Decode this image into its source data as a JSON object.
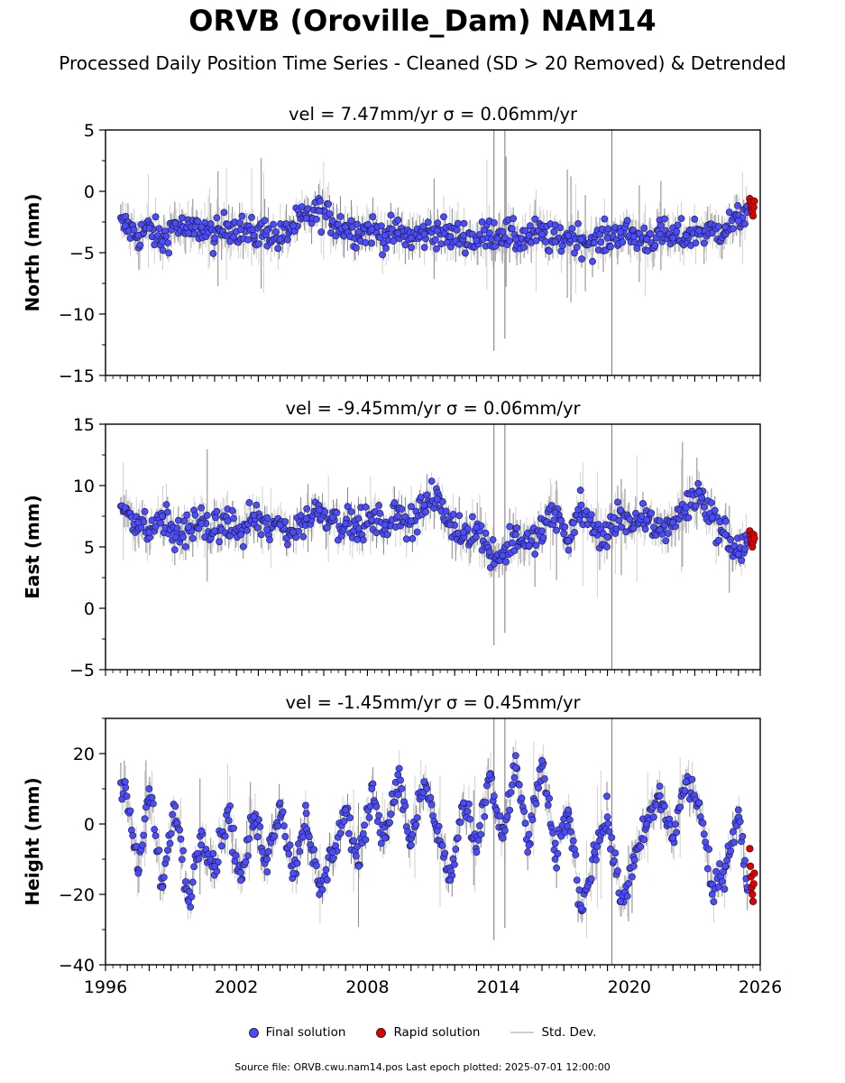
{
  "title": "ORVB (Oroville_Dam) NAM14",
  "subtitle": "Processed Daily Position Time Series - Cleaned (SD > 20 Removed) & Detrended",
  "legend": {
    "final": "Final solution",
    "rapid": "Rapid solution",
    "std": "Std. Dev."
  },
  "footer": "Source file: ORVB.cwu.nam14.pos  Last epoch plotted: 2025-07-01 12:00:00",
  "colors": {
    "final": "#4b4bff",
    "rapid": "#e00000",
    "std": "#b0b0b0"
  },
  "chart_data": [
    {
      "type": "scatter",
      "panel_title": "vel = 7.47mm/yr   σ = 0.06mm/yr",
      "ylabel": "North (mm)",
      "xlim": [
        1996,
        2026
      ],
      "ylim": [
        -15,
        5
      ],
      "yticks": [
        -15,
        -10,
        -5,
        0,
        5
      ],
      "ytick_labels": [
        "−15",
        "−10",
        "−5",
        "0",
        "5"
      ],
      "series": [
        {
          "name": "Final solution",
          "x": [
            1996.9,
            1997.5,
            1998.0,
            1998.6,
            1999.2,
            1999.8,
            2000.4,
            2001.0,
            2001.6,
            2002.2,
            2002.8,
            2003.4,
            2004.0,
            2004.6,
            2005.2,
            2005.8,
            2006.4,
            2007.0,
            2007.6,
            2008.2,
            2008.8,
            2009.4,
            2010.0,
            2010.6,
            2011.2,
            2011.8,
            2012.4,
            2013.0,
            2013.6,
            2014.2,
            2014.8,
            2015.4,
            2016.0,
            2016.6,
            2017.2,
            2017.8,
            2018.4,
            2019.0,
            2019.6,
            2020.2,
            2020.8,
            2021.4,
            2022.0,
            2022.6,
            2023.2,
            2023.8,
            2024.4,
            2025.0,
            2025.4
          ],
          "y": [
            -2.8,
            -3.6,
            -3.0,
            -4.1,
            -2.6,
            -3.4,
            -2.9,
            -3.8,
            -2.7,
            -3.1,
            -3.6,
            -3.2,
            -3.9,
            -2.8,
            -2.2,
            -1.6,
            -2.4,
            -2.9,
            -3.3,
            -3.1,
            -3.6,
            -3.4,
            -3.8,
            -3.5,
            -3.2,
            -3.7,
            -3.6,
            -4.0,
            -3.4,
            -3.3,
            -3.9,
            -3.6,
            -3.5,
            -4.1,
            -3.6,
            -3.9,
            -4.2,
            -3.8,
            -3.3,
            -3.7,
            -3.9,
            -3.5,
            -3.8,
            -3.6,
            -3.2,
            -3.4,
            -2.9,
            -2.4,
            -1.2
          ]
        },
        {
          "name": "Rapid solution",
          "x": [
            2025.52,
            2025.55,
            2025.58,
            2025.61,
            2025.64,
            2025.67,
            2025.7,
            2025.73
          ],
          "y": [
            -0.6,
            -0.9,
            -1.2,
            -1.5,
            -1.7,
            -2.0,
            -1.3,
            -0.8
          ]
        }
      ]
    },
    {
      "type": "scatter",
      "panel_title": "vel = -9.45mm/yr   σ = 0.06mm/yr",
      "ylabel": "East (mm)",
      "xlim": [
        1996,
        2026
      ],
      "ylim": [
        -5,
        15
      ],
      "yticks": [
        -5,
        0,
        5,
        10,
        15
      ],
      "ytick_labels": [
        "−5",
        "0",
        "5",
        "10",
        "15"
      ],
      "series": [
        {
          "name": "Final solution",
          "x": [
            1996.9,
            1997.5,
            1998.0,
            1998.6,
            1999.2,
            1999.8,
            2000.4,
            2001.0,
            2001.6,
            2002.2,
            2002.8,
            2003.4,
            2004.0,
            2004.6,
            2005.2,
            2005.8,
            2006.4,
            2007.0,
            2007.6,
            2008.2,
            2008.8,
            2009.4,
            2010.0,
            2010.6,
            2011.2,
            2011.8,
            2012.4,
            2013.0,
            2013.6,
            2014.2,
            2014.8,
            2015.4,
            2016.0,
            2016.6,
            2017.2,
            2017.8,
            2018.4,
            2019.0,
            2019.6,
            2020.2,
            2020.8,
            2021.4,
            2022.0,
            2022.6,
            2023.2,
            2023.8,
            2024.4,
            2025.0,
            2025.4
          ],
          "y": [
            8.2,
            7.0,
            6.2,
            7.5,
            5.8,
            6.6,
            6.9,
            6.3,
            7.1,
            6.0,
            7.6,
            6.4,
            6.8,
            6.2,
            7.3,
            8.0,
            7.4,
            6.9,
            6.5,
            7.2,
            6.8,
            7.5,
            7.1,
            8.4,
            8.9,
            6.8,
            6.2,
            6.6,
            4.6,
            4.3,
            6.0,
            5.1,
            6.3,
            7.8,
            5.5,
            8.4,
            6.2,
            5.8,
            8.0,
            6.5,
            7.2,
            6.4,
            7.0,
            8.2,
            9.5,
            7.4,
            6.0,
            4.4,
            5.6
          ]
        },
        {
          "name": "Rapid solution",
          "x": [
            2025.52,
            2025.55,
            2025.58,
            2025.61,
            2025.64,
            2025.67,
            2025.7,
            2025.73
          ],
          "y": [
            6.3,
            5.9,
            5.6,
            5.2,
            5.0,
            5.4,
            6.0,
            5.7
          ]
        }
      ]
    },
    {
      "type": "scatter",
      "panel_title": "vel = -1.45mm/yr   σ = 0.45mm/yr",
      "ylabel": "Height (mm)",
      "xlabel": "",
      "xlim": [
        1996,
        2026
      ],
      "ylim": [
        -40,
        30
      ],
      "yticks": [
        -40,
        -20,
        0,
        20
      ],
      "ytick_labels": [
        "−40",
        "−20",
        "0",
        "20"
      ],
      "xticks": [
        1996,
        2002,
        2008,
        2014,
        2020,
        2026
      ],
      "series": [
        {
          "name": "Final solution",
          "x": [
            1996.9,
            1997.5,
            1998.0,
            1998.6,
            1999.2,
            1999.8,
            2000.4,
            2001.0,
            2001.6,
            2002.2,
            2002.8,
            2003.4,
            2004.0,
            2004.6,
            2005.2,
            2005.8,
            2006.4,
            2007.0,
            2007.6,
            2008.2,
            2008.8,
            2009.4,
            2010.0,
            2010.6,
            2011.2,
            2011.8,
            2012.4,
            2013.0,
            2013.6,
            2014.2,
            2014.8,
            2015.4,
            2016.0,
            2016.6,
            2017.2,
            2017.8,
            2018.4,
            2019.0,
            2019.6,
            2020.2,
            2020.8,
            2021.4,
            2022.0,
            2022.6,
            2023.2,
            2023.8,
            2024.4,
            2025.0,
            2025.4
          ],
          "y": [
            12,
            -14,
            10,
            -18,
            5,
            -22,
            -2,
            -12,
            4,
            -16,
            2,
            -10,
            6,
            -14,
            3,
            -20,
            -8,
            4,
            -12,
            10,
            -4,
            14,
            -6,
            12,
            -2,
            -16,
            6,
            -8,
            14,
            -4,
            16,
            -6,
            18,
            -10,
            4,
            -24,
            -8,
            2,
            -22,
            -12,
            0,
            8,
            -4,
            12,
            6,
            -20,
            -12,
            4,
            -18
          ]
        },
        {
          "name": "Rapid solution",
          "x": [
            2025.52,
            2025.55,
            2025.58,
            2025.61,
            2025.64,
            2025.67,
            2025.7,
            2025.73
          ],
          "y": [
            -7,
            -12,
            -15,
            -18,
            -20,
            -22,
            -17,
            -14
          ]
        }
      ]
    }
  ]
}
